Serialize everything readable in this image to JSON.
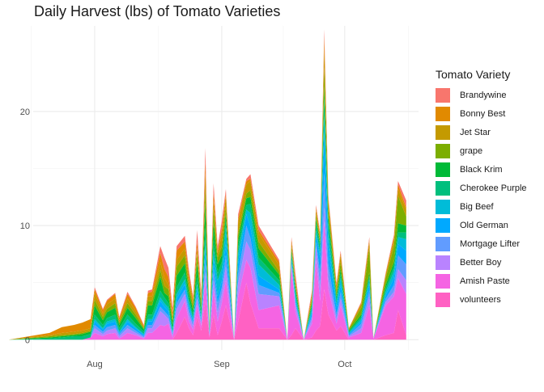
{
  "chart_data": {
    "type": "area",
    "stacked": true,
    "title": "Daily Harvest (lbs) of Tomato Varieties",
    "xlabel": "",
    "ylabel": "",
    "x_ticks": [
      {
        "label": "Aug",
        "date": "2020-08-01"
      },
      {
        "label": "Sep",
        "date": "2020-09-01"
      },
      {
        "label": "Oct",
        "date": "2020-10-01"
      }
    ],
    "y_ticks": [
      0,
      10,
      20
    ],
    "xlim": [
      "2020-07-17",
      "2020-10-19"
    ],
    "ylim": [
      -0.9,
      27.5
    ],
    "grid": true,
    "legend_position": "right",
    "legend_title": "Tomato Variety",
    "x": [
      "2020-07-11",
      "2020-07-21",
      "2020-07-24",
      "2020-07-27",
      "2020-07-29",
      "2020-07-31",
      "2020-08-01",
      "2020-08-03",
      "2020-08-04",
      "2020-08-06",
      "2020-08-07",
      "2020-08-09",
      "2020-08-11",
      "2020-08-13",
      "2020-08-14",
      "2020-08-15",
      "2020-08-17",
      "2020-08-18",
      "2020-08-19",
      "2020-08-20",
      "2020-08-21",
      "2020-08-23",
      "2020-08-24",
      "2020-08-25",
      "2020-08-26",
      "2020-08-27",
      "2020-08-28",
      "2020-08-29",
      "2020-08-30",
      "2020-08-31",
      "2020-09-01",
      "2020-09-02",
      "2020-09-04",
      "2020-09-05",
      "2020-09-07",
      "2020-09-08",
      "2020-09-10",
      "2020-09-15",
      "2020-09-17",
      "2020-09-18",
      "2020-09-19",
      "2020-09-21",
      "2020-09-23",
      "2020-09-24",
      "2020-09-25",
      "2020-09-26",
      "2020-09-27",
      "2020-09-29",
      "2020-09-30",
      "2020-10-02",
      "2020-10-05",
      "2020-10-07",
      "2020-10-08",
      "2020-10-11",
      "2020-10-13",
      "2020-10-14",
      "2020-10-16"
    ],
    "series": [
      {
        "name": "volunteers",
        "color": "#FF61C3",
        "values": [
          0,
          0,
          0,
          0,
          0,
          0,
          0,
          0,
          0,
          0,
          0,
          0,
          0,
          0,
          0,
          0,
          0,
          0,
          0,
          0,
          0.6,
          2,
          1,
          0.4,
          2,
          0.8,
          3.4,
          0.2,
          2.2,
          0.4,
          1.6,
          3,
          0,
          1.6,
          5,
          3.2,
          1,
          1,
          0,
          0.4,
          1,
          0,
          0.2,
          0.8,
          1.2,
          4.4,
          2.2,
          0.8,
          1.2,
          0,
          0,
          0,
          0,
          0.4,
          0.6,
          2.6,
          0.4
        ]
      },
      {
        "name": "Amish Paste",
        "color": "#F564E3",
        "values": [
          0,
          0,
          0,
          0,
          0,
          0.2,
          0.6,
          0.3,
          0.5,
          0.6,
          0.1,
          0.6,
          0.4,
          0.1,
          0.6,
          0.6,
          1.3,
          1.2,
          1.4,
          0.2,
          1.3,
          1.4,
          0.6,
          0.5,
          1,
          0.4,
          1.8,
          0.1,
          2.2,
          1.2,
          1.6,
          2.2,
          0,
          2.2,
          2,
          3.1,
          1.6,
          2,
          0,
          6,
          1.4,
          0,
          1.2,
          6.2,
          2.2,
          6,
          2.2,
          0.6,
          1.8,
          0.2,
          0.6,
          3,
          0.1,
          2.6,
          3.2,
          2.8,
          3.6
        ]
      },
      {
        "name": "Better Boy",
        "color": "#B983FF",
        "values": [
          0,
          0,
          0,
          0,
          0,
          0,
          0.4,
          0.2,
          0.3,
          0.4,
          0.2,
          0.4,
          0.2,
          0.1,
          0.4,
          0.4,
          1.2,
          1,
          0.4,
          0.2,
          0.8,
          0.6,
          0.6,
          0.3,
          0.6,
          0.2,
          0.8,
          0.1,
          0.8,
          0.8,
          0.8,
          1.2,
          0,
          1.2,
          1.6,
          1.6,
          1.4,
          0.8,
          0,
          0.2,
          0.6,
          0,
          0.4,
          1.2,
          1.2,
          1.2,
          1,
          0.4,
          0.6,
          0.1,
          0.4,
          0.8,
          0,
          0.3,
          0.4,
          0.8,
          1.2
        ]
      },
      {
        "name": "Mortgage Lifter",
        "color": "#619CFF",
        "values": [
          0,
          0,
          0,
          0,
          0,
          0,
          0.3,
          0.2,
          0.3,
          0.3,
          0.2,
          0.3,
          0.2,
          0.1,
          0.3,
          0.3,
          0.4,
          0.3,
          0.3,
          0.1,
          0.5,
          0.4,
          0.4,
          0.3,
          0.4,
          0.2,
          1,
          0.1,
          1,
          0.8,
          0.6,
          1,
          0,
          0.8,
          1.4,
          1,
          0.8,
          0.3,
          0,
          0.2,
          0.2,
          0,
          0.3,
          0.4,
          1.2,
          3,
          1.2,
          0.4,
          0.6,
          0.1,
          0.4,
          0.5,
          0,
          0.3,
          0.6,
          1.2,
          1.4
        ]
      },
      {
        "name": "Old German",
        "color": "#00A9FF",
        "values": [
          0,
          0,
          0,
          0,
          0,
          0,
          0.3,
          0.2,
          0.3,
          0.3,
          0.1,
          0.3,
          0.2,
          0.1,
          0.3,
          0.3,
          0.5,
          0.4,
          0.4,
          0.1,
          0.4,
          0.5,
          0.3,
          0.2,
          0.5,
          0.2,
          1,
          0.1,
          0.8,
          0.6,
          0.6,
          1,
          0,
          1,
          1,
          1,
          0.8,
          0.3,
          0,
          0.2,
          0.2,
          0,
          0.3,
          0.6,
          1.4,
          3.6,
          1.6,
          0.6,
          0.6,
          0.1,
          0.2,
          0.6,
          0,
          0.3,
          0.6,
          1,
          1.2
        ]
      },
      {
        "name": "Big Beef",
        "color": "#00BCD8",
        "values": [
          0,
          0,
          0,
          0,
          0,
          0,
          0.2,
          0.1,
          0.2,
          0.2,
          0.1,
          0.2,
          0.1,
          0.1,
          0.2,
          0.2,
          0.3,
          0.3,
          0.3,
          0.1,
          0.4,
          0.4,
          0.3,
          0.2,
          0.4,
          0.2,
          0.8,
          0.1,
          0.8,
          1.4,
          1,
          1.4,
          0,
          0.8,
          0.4,
          1.2,
          1,
          0.4,
          0,
          0.4,
          0.4,
          0,
          0.3,
          0.4,
          0.4,
          1.4,
          1,
          0.4,
          0.6,
          0.1,
          0.2,
          0.4,
          0,
          0.3,
          0.6,
          0.6,
          1
        ]
      },
      {
        "name": "Cherokee Purple",
        "color": "#00BF7D",
        "values": [
          0,
          0.1,
          0.2,
          0.3,
          0.3,
          0.3,
          0.4,
          0.3,
          0.3,
          0.4,
          0.3,
          0.4,
          0.3,
          0.2,
          0.4,
          0.4,
          0.6,
          0.5,
          0.4,
          0.3,
          0.6,
          0.6,
          0.4,
          0.3,
          0.6,
          0.3,
          1,
          0.1,
          1,
          0.6,
          0.6,
          0.6,
          0,
          0.6,
          0.4,
          0.8,
          0.6,
          0.4,
          0,
          0.3,
          0.4,
          0,
          0.3,
          0.6,
          0.6,
          1.6,
          1,
          0.4,
          0.4,
          0.1,
          0.2,
          0.3,
          0,
          0.3,
          0.4,
          0.4,
          0.6
        ]
      },
      {
        "name": "Black Krim",
        "color": "#00BA38",
        "values": [
          0,
          0.1,
          0.1,
          0.1,
          0.2,
          0.2,
          0.8,
          0.4,
          0.5,
          0.6,
          0.3,
          0.6,
          0.5,
          0.2,
          0.8,
          0.8,
          1.2,
          0.4,
          0.6,
          0.4,
          1,
          0.8,
          0.5,
          0.4,
          1.2,
          0.4,
          2.2,
          0.1,
          1.4,
          0.8,
          0.6,
          0.6,
          0,
          0.6,
          0.6,
          0.6,
          0.8,
          0.5,
          0,
          0.2,
          0.3,
          0,
          0.2,
          0.4,
          0.2,
          1,
          0.6,
          0.2,
          0.4,
          0.1,
          0.2,
          0.3,
          0,
          0.3,
          0.4,
          0.8,
          0.6
        ]
      },
      {
        "name": "grape",
        "color": "#7CAE00",
        "values": [
          0,
          0.1,
          0.1,
          0.1,
          0.1,
          0.1,
          0.5,
          0.3,
          0.3,
          0.4,
          0.2,
          0.4,
          0.3,
          0.1,
          0.4,
          0.4,
          0.6,
          0.6,
          0.6,
          0.3,
          0.8,
          0.7,
          0.6,
          0.4,
          0.8,
          0.4,
          1.4,
          0.1,
          1.2,
          0.6,
          0.8,
          0.6,
          0,
          0.6,
          0.4,
          0.6,
          0.6,
          0.3,
          0,
          0.3,
          0.3,
          0,
          0.3,
          0.4,
          0.2,
          1.8,
          0.6,
          0.4,
          0.6,
          0.1,
          0.6,
          2.1,
          0,
          0.6,
          1.4,
          2.4,
          0.8
        ]
      },
      {
        "name": "Jet Star",
        "color": "#C49A00",
        "values": [
          0,
          0.1,
          0.2,
          0.2,
          0.2,
          0.2,
          0.6,
          0.3,
          0.4,
          0.4,
          0.2,
          0.4,
          0.3,
          0.1,
          0.4,
          0.4,
          0.7,
          0.7,
          0.4,
          0.3,
          0.6,
          0.6,
          0.5,
          0.3,
          0.6,
          0.3,
          1.2,
          0.1,
          0.9,
          0.4,
          1,
          1,
          0,
          1,
          0.8,
          0.8,
          0.7,
          0.5,
          0,
          0.3,
          0.3,
          0,
          0.3,
          0.4,
          0.4,
          1.6,
          0.8,
          0.4,
          0.6,
          0.1,
          0.3,
          0.6,
          0,
          0.3,
          0.6,
          0.6,
          0.6
        ]
      },
      {
        "name": "Bonny Best",
        "color": "#E18A00",
        "values": [
          0,
          0.2,
          0.5,
          0.6,
          0.7,
          0.8,
          0.3,
          0.3,
          0.3,
          0.4,
          0.2,
          0.4,
          0.3,
          0.1,
          0.3,
          0.4,
          0.8,
          0.8,
          0.7,
          0.4,
          0.8,
          0.6,
          0.5,
          0.3,
          0.5,
          0.3,
          1,
          0.1,
          0.6,
          0.2,
          0.4,
          0.2,
          0,
          0.2,
          0.3,
          0.2,
          0.3,
          0.3,
          0,
          0.3,
          0.2,
          0,
          0.2,
          0.2,
          0.2,
          1,
          0.2,
          0.2,
          0.2,
          0,
          0.1,
          0.2,
          0,
          0.1,
          0.2,
          0.4,
          0.2
        ]
      },
      {
        "name": "Brandywine",
        "color": "#F8766D",
        "values": [
          0,
          0,
          0,
          0,
          0,
          0,
          0.2,
          0.1,
          0.1,
          0.1,
          0.1,
          0.2,
          0.1,
          0.1,
          0.2,
          0.2,
          0.6,
          1,
          0.8,
          0.4,
          0.4,
          0.5,
          0.4,
          0.2,
          1,
          0.4,
          1.2,
          0.1,
          0.8,
          0.4,
          0.8,
          0.4,
          0,
          0.4,
          0.2,
          0.4,
          0.4,
          0.2,
          0,
          0.2,
          0.4,
          0,
          0.3,
          0.2,
          0.2,
          0.6,
          0.2,
          0.2,
          0.2,
          0,
          0.1,
          0.2,
          0,
          0.1,
          0.2,
          0.3,
          0.6
        ]
      }
    ]
  }
}
